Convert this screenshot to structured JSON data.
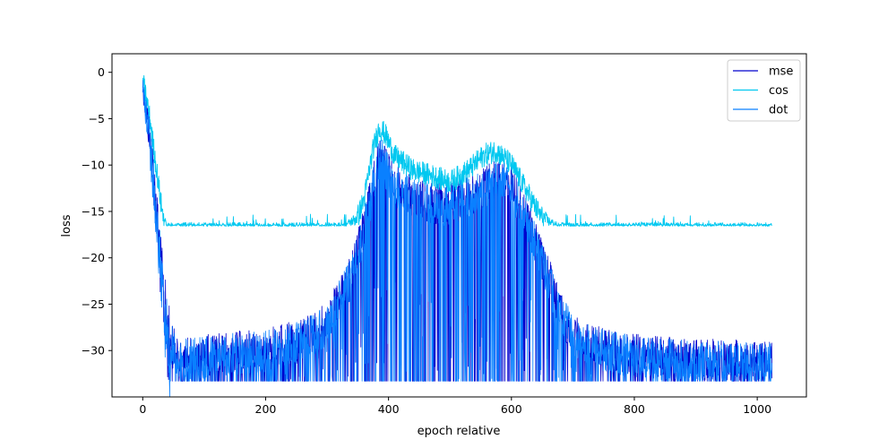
{
  "chart_data": {
    "type": "line",
    "title": "",
    "xlabel": "epoch relative",
    "ylabel": "loss",
    "xlim": [
      -50,
      1080
    ],
    "ylim": [
      -35,
      2
    ],
    "x_ticks": [
      0,
      200,
      400,
      600,
      800,
      1000
    ],
    "y_ticks": [
      0,
      -5,
      -10,
      -15,
      -20,
      -25,
      -30
    ],
    "legend_position": "top-right",
    "grid": false,
    "series": [
      {
        "name": "mse",
        "color": "#0000cd",
        "upper_envelope": [
          [
            0,
            0.3
          ],
          [
            10,
            -4
          ],
          [
            20,
            -10
          ],
          [
            30,
            -18
          ],
          [
            40,
            -24
          ],
          [
            50,
            -27.5
          ],
          [
            60,
            -28.6
          ],
          [
            100,
            -28.3
          ],
          [
            150,
            -27.9
          ],
          [
            200,
            -27.6
          ],
          [
            260,
            -26.6
          ],
          [
            300,
            -24.8
          ],
          [
            340,
            -19.5
          ],
          [
            360,
            -14.5
          ],
          [
            370,
            -11.5
          ],
          [
            380,
            -8.2
          ],
          [
            385,
            -6.6
          ],
          [
            392,
            -7.2
          ],
          [
            400,
            -8.8
          ],
          [
            420,
            -10.5
          ],
          [
            450,
            -11.6
          ],
          [
            480,
            -12.0
          ],
          [
            500,
            -11.8
          ],
          [
            530,
            -11.1
          ],
          [
            560,
            -10.0
          ],
          [
            580,
            -9.3
          ],
          [
            600,
            -10.1
          ],
          [
            620,
            -12.6
          ],
          [
            640,
            -16.2
          ],
          [
            660,
            -19.8
          ],
          [
            680,
            -23.5
          ],
          [
            700,
            -26.0
          ],
          [
            750,
            -27.6
          ],
          [
            800,
            -28.2
          ],
          [
            850,
            -28.5
          ],
          [
            900,
            -28.7
          ],
          [
            1000,
            -28.9
          ],
          [
            1024,
            -29.0
          ]
        ],
        "lower_bound": -33.3
      },
      {
        "name": "cos",
        "color": "#00c8f0",
        "upper_envelope": [
          [
            0,
            0.4
          ],
          [
            10,
            -3
          ],
          [
            20,
            -8
          ],
          [
            30,
            -13
          ],
          [
            38,
            -16.2
          ],
          [
            60,
            -16.2
          ],
          [
            200,
            -16.2
          ],
          [
            330,
            -16.2
          ],
          [
            345,
            -15.2
          ],
          [
            360,
            -12.5
          ],
          [
            375,
            -7.0
          ],
          [
            385,
            -4.7
          ],
          [
            395,
            -5.5
          ],
          [
            410,
            -7.8
          ],
          [
            440,
            -9.3
          ],
          [
            475,
            -10.0
          ],
          [
            500,
            -10.6
          ],
          [
            530,
            -9.3
          ],
          [
            555,
            -7.7
          ],
          [
            575,
            -7.2
          ],
          [
            600,
            -8.7
          ],
          [
            620,
            -11.0
          ],
          [
            640,
            -13.4
          ],
          [
            660,
            -15.5
          ],
          [
            675,
            -16.2
          ],
          [
            800,
            -16.2
          ],
          [
            1024,
            -16.2
          ]
        ],
        "band_lower": -16.6
      },
      {
        "name": "dot",
        "color": "#0a80ff",
        "upper_envelope": [
          [
            0,
            0.2
          ],
          [
            10,
            -4.5
          ],
          [
            20,
            -10.5
          ],
          [
            30,
            -18.5
          ],
          [
            40,
            -24.5
          ],
          [
            50,
            -27.8
          ],
          [
            60,
            -28.8
          ],
          [
            100,
            -28.5
          ],
          [
            150,
            -28.1
          ],
          [
            200,
            -27.8
          ],
          [
            260,
            -26.8
          ],
          [
            300,
            -25.0
          ],
          [
            340,
            -19.8
          ],
          [
            360,
            -14.8
          ],
          [
            370,
            -11.8
          ],
          [
            380,
            -8.5
          ],
          [
            385,
            -6.9
          ],
          [
            392,
            -7.4
          ],
          [
            400,
            -9.0
          ],
          [
            420,
            -10.7
          ],
          [
            450,
            -11.8
          ],
          [
            480,
            -12.2
          ],
          [
            500,
            -12.0
          ],
          [
            530,
            -11.3
          ],
          [
            560,
            -10.2
          ],
          [
            580,
            -9.5
          ],
          [
            600,
            -10.3
          ],
          [
            620,
            -12.8
          ],
          [
            640,
            -16.4
          ],
          [
            660,
            -20.0
          ],
          [
            680,
            -23.7
          ],
          [
            700,
            -26.2
          ],
          [
            750,
            -27.8
          ],
          [
            800,
            -28.4
          ],
          [
            850,
            -28.7
          ],
          [
            900,
            -28.9
          ],
          [
            1000,
            -29.1
          ],
          [
            1024,
            -29.2
          ]
        ],
        "lower_bound": -33.3
      }
    ]
  }
}
